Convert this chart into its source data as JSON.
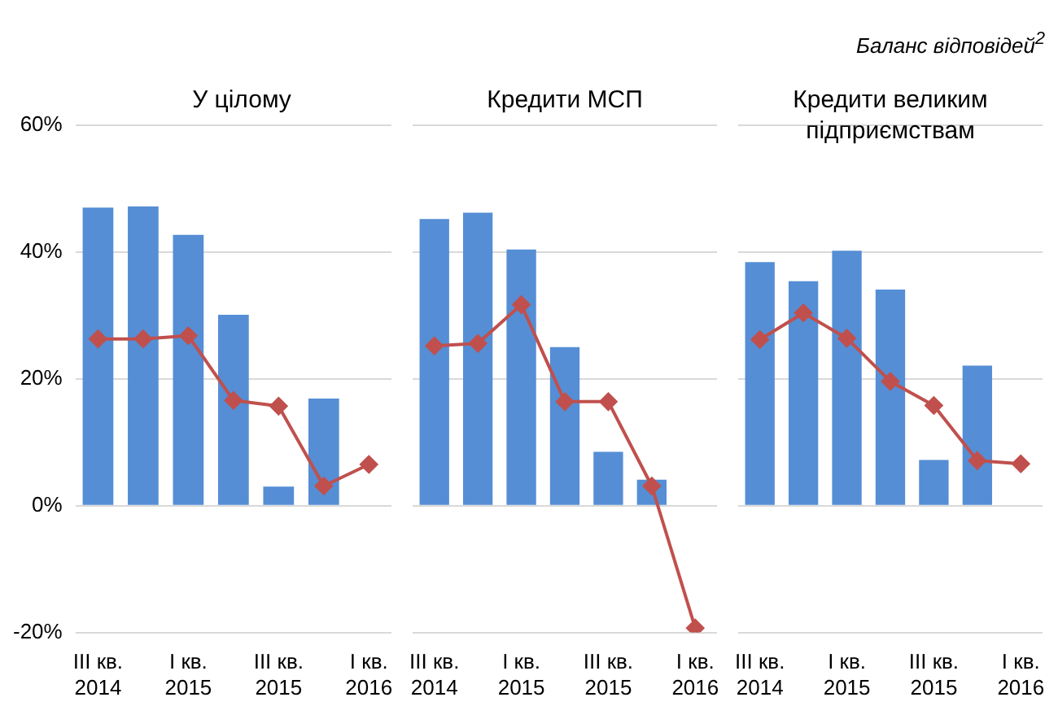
{
  "chart_data": [
    {
      "type": "bar",
      "title": "У цілому",
      "categories": [
        "III кв. 2014",
        null,
        "I кв. 2015",
        null,
        "III кв. 2015",
        null,
        "I кв. 2016"
      ],
      "series": [
        {
          "color": "#558ed5",
          "values": [
            47.0,
            47.2,
            42.7,
            30.1,
            3.0,
            16.9,
            null
          ]
        },
        {
          "type": "line",
          "color": "#c0504d",
          "values": [
            26.3,
            26.3,
            26.8,
            16.6,
            15.7,
            3.1,
            6.5
          ]
        }
      ],
      "ylim": [
        -20,
        60
      ],
      "yticks": [
        {
          "value": -20,
          "label": "-20%"
        },
        {
          "value": 0,
          "label": "0%"
        },
        {
          "value": 20,
          "label": "20%"
        },
        {
          "value": 40,
          "label": "40%"
        },
        {
          "value": 60,
          "label": "60%"
        }
      ],
      "grid": "y",
      "marker": "diamond",
      "legend": false
    },
    {
      "type": "bar",
      "title": "Кредити МСП",
      "categories": [
        "III кв. 2014",
        null,
        "I кв. 2015",
        null,
        "III кв. 2015",
        null,
        "I кв. 2016"
      ],
      "series": [
        {
          "color": "#558ed5",
          "values": [
            45.2,
            46.2,
            40.4,
            25.0,
            8.5,
            4.1,
            null
          ]
        },
        {
          "type": "line",
          "color": "#c0504d",
          "values": [
            25.2,
            25.6,
            31.7,
            16.4,
            16.4,
            3.1,
            -19.3
          ]
        }
      ],
      "ylim": [
        -20,
        60
      ],
      "yticks": [
        -20,
        0,
        20,
        40,
        60
      ],
      "grid": "y",
      "marker": "diamond",
      "legend": false,
      "tick_labels": "x"
    },
    {
      "type": "bar",
      "title": "Кредити великим підприємствам",
      "categories": [
        "III кв. 2014",
        null,
        "I кв. 2015",
        null,
        "III кв. 2015",
        null,
        "I кв. 2016"
      ],
      "series": [
        {
          "color": "#558ed5",
          "values": [
            38.4,
            35.4,
            40.2,
            34.1,
            7.2,
            22.1,
            null
          ]
        },
        {
          "type": "line",
          "color": "#c0504d",
          "values": [
            26.2,
            30.4,
            26.4,
            19.6,
            15.8,
            7.1,
            6.6
          ]
        }
      ],
      "ylim": [
        -20,
        60
      ],
      "yticks": [
        -20,
        0,
        20,
        40,
        60
      ],
      "grid": "y",
      "marker": "diamond",
      "legend": false,
      "tick_labels": "x",
      "annotations": [
        "Баланс відповідей$^{2}$"
      ]
    }
  ]
}
